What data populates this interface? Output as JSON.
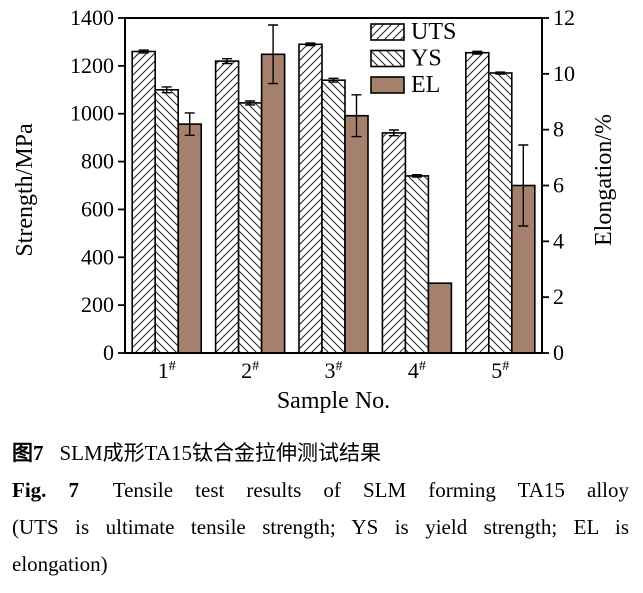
{
  "figure": {
    "caption_cn_label": "图7",
    "caption_cn_text": "SLM成形TA15钛合金拉伸测试结果",
    "caption_en_label": "Fig. 7",
    "caption_en_line1": "Tensile test results of SLM forming TA15 alloy",
    "caption_en_line2": "(UTS is ultimate tensile strength; YS is yield strength; EL is",
    "caption_en_line3": "elongation)"
  },
  "chart_data": {
    "type": "bar",
    "title": "",
    "xlabel": "Sample No.",
    "ylabel_left": "Strength/MPa",
    "ylabel_right": "Elongation/%",
    "categories": [
      "1#",
      "2#",
      "3#",
      "4#",
      "5#"
    ],
    "left_axis": {
      "label": "Strength/MPa",
      "min": 0,
      "max": 1400,
      "step": 200
    },
    "right_axis": {
      "label": "Elongation/%",
      "min": 0,
      "max": 12,
      "step": 2
    },
    "series": [
      {
        "name": "UTS",
        "axis": "left",
        "style": "hatch-up",
        "values": [
          1260,
          1220,
          1290,
          920,
          1255
        ],
        "errors": [
          6,
          10,
          5,
          12,
          6
        ]
      },
      {
        "name": "YS",
        "axis": "left",
        "style": "hatch-down",
        "values": [
          1100,
          1045,
          1140,
          740,
          1170
        ],
        "errors": [
          12,
          8,
          8,
          5,
          4
        ]
      },
      {
        "name": "EL",
        "axis": "right",
        "style": "solid",
        "color": "#A5816D",
        "values": [
          8.2,
          10.7,
          8.5,
          2.5,
          6.0
        ],
        "errors": [
          0.4,
          1.05,
          0.75,
          0,
          1.45
        ]
      }
    ],
    "legend": {
      "position": "top-right",
      "entries": [
        "UTS",
        "YS",
        "EL"
      ]
    },
    "grid": false,
    "colors": {
      "bar_outline": "#000000",
      "hatch_line": "#2a2a2a",
      "el_fill": "#A5816D"
    }
  }
}
